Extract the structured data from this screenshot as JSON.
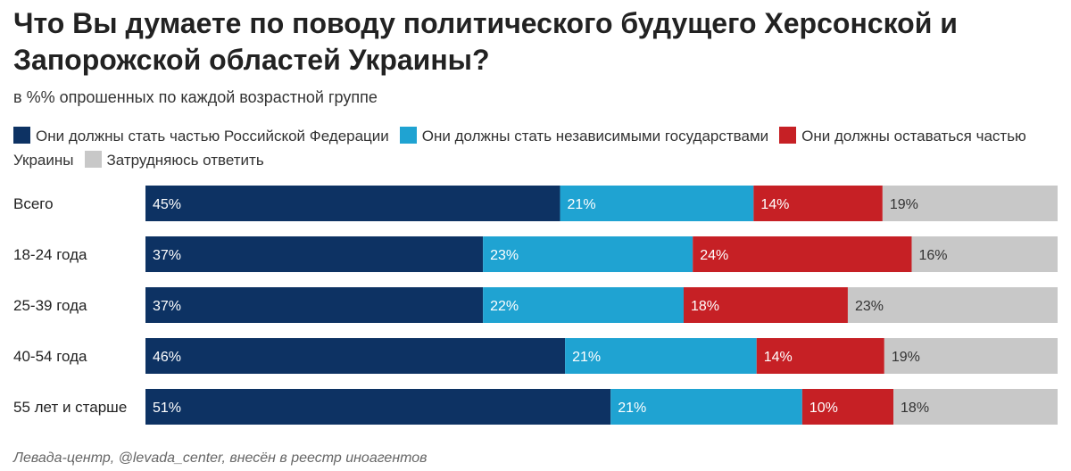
{
  "title": "Что Вы думаете по поводу политического будущего Херсонской и Запорожской областей Украины?",
  "subtitle": "в %% опрошенных по каждой возрастной группе",
  "source": "Левада-центр, @levada_center, внесён в реестр иноагентов",
  "colors": {
    "russia": "#0d3263",
    "independent": "#1fa3d2",
    "ukraine": "#c62025",
    "unsure": "#c8c8c8"
  },
  "legend": [
    {
      "label": "Они должны стать частью Российской Федерации",
      "color": "#0d3263"
    },
    {
      "label": "Они должны стать независимыми государствами",
      "color": "#1fa3d2"
    },
    {
      "label": "Они должны оставаться частью Украины",
      "color": "#c62025"
    },
    {
      "label": "Затрудняюсь ответить",
      "color": "#c8c8c8"
    }
  ],
  "chart_data": {
    "type": "bar",
    "orientation": "horizontal",
    "stacked": true,
    "categories": [
      "Всего",
      "18-24 года",
      "25-39 года",
      "40-54 года",
      "55 лет и старше"
    ],
    "series": [
      {
        "name": "Они должны стать частью Российской Федерации",
        "values": [
          45,
          37,
          37,
          46,
          51
        ],
        "color": "#0d3263",
        "label_color": "#ffffff"
      },
      {
        "name": "Они должны стать независимыми государствами",
        "values": [
          21,
          23,
          22,
          21,
          21
        ],
        "color": "#1fa3d2",
        "label_color": "#ffffff"
      },
      {
        "name": "Они должны оставаться частью Украины",
        "values": [
          14,
          24,
          18,
          14,
          10
        ],
        "color": "#c62025",
        "label_color": "#ffffff"
      },
      {
        "name": "Затрудняюсь ответить",
        "values": [
          19,
          16,
          23,
          19,
          18
        ],
        "color": "#c8c8c8",
        "label_color": "#333333"
      }
    ],
    "value_suffix": "%",
    "xlim": [
      0,
      100
    ],
    "grid": false,
    "legend_position": "top"
  }
}
